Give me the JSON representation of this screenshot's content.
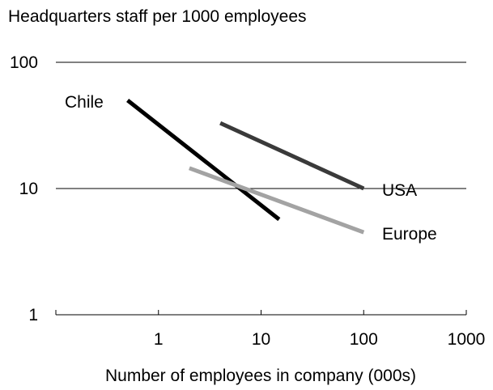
{
  "chart_data": {
    "type": "line",
    "title": "Headquarters staff per 1000 employees",
    "xlabel": "Number of employees in company (000s)",
    "ylabel": "",
    "x_scale": "log",
    "y_scale": "log",
    "xlim": [
      0.1,
      1000
    ],
    "ylim": [
      1,
      100
    ],
    "x_ticks": [
      "1",
      "10",
      "100",
      "1000"
    ],
    "y_ticks": [
      "1",
      "10",
      "100"
    ],
    "grid": "horizontal",
    "legend": "none",
    "series": [
      {
        "name": "Chile",
        "color": "#000000",
        "points": [
          {
            "x": 0.5,
            "y": 50
          },
          {
            "x": 15,
            "y": 5.7
          }
        ]
      },
      {
        "name": "USA",
        "color": "#3a3a3a",
        "points": [
          {
            "x": 4,
            "y": 33
          },
          {
            "x": 100,
            "y": 10
          }
        ]
      },
      {
        "name": "Europe",
        "color": "#a3a3a3",
        "points": [
          {
            "x": 2,
            "y": 14.5
          },
          {
            "x": 100,
            "y": 4.5
          }
        ]
      }
    ]
  }
}
